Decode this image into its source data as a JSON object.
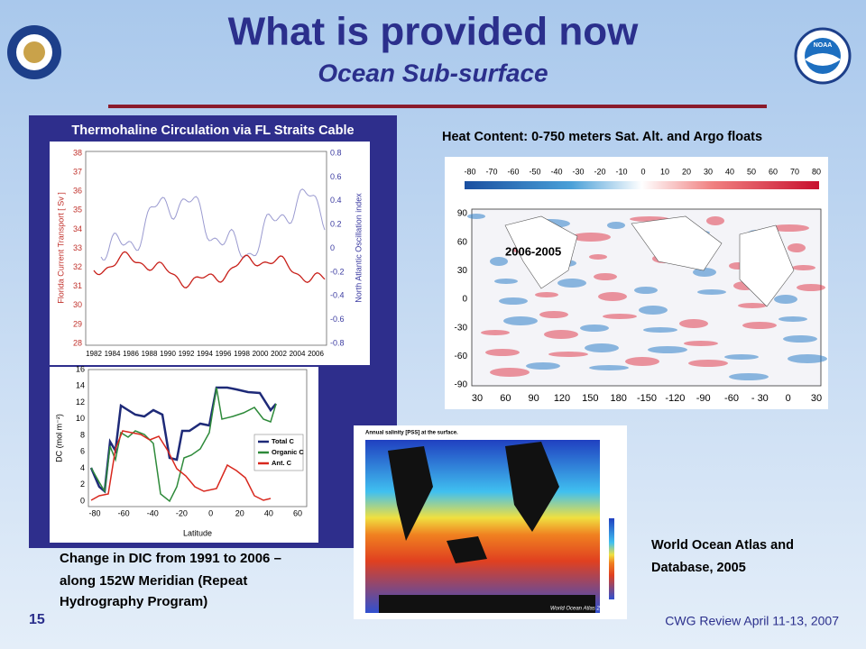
{
  "header": {
    "title": "What is provided now",
    "subtitle": "Ocean Sub-surface"
  },
  "transport_panel": {
    "title": "Thermohaline Circulation via FL Straits Cable",
    "transport_chart": {
      "y_label": "Florida Current Transport [ Sv ]",
      "y_ticks": [
        38,
        37,
        36,
        35,
        34,
        33,
        32,
        31,
        30,
        29,
        28
      ],
      "y2_label": "North Atlantic Oscillation index",
      "y2_ticks": [
        0.8,
        0.6,
        0.4,
        0.2,
        0,
        -0.2,
        -0.4,
        -0.6,
        -0.8
      ],
      "x_ticks": [
        1982,
        1984,
        1986,
        1988,
        1990,
        1992,
        1994,
        1996,
        1998,
        2000,
        2002,
        2004,
        2006
      ]
    },
    "dic_chart": {
      "y_label": "DC (mol m⁻²)",
      "y_ticks": [
        16,
        14,
        12,
        10,
        8,
        6,
        4,
        2,
        0
      ],
      "x_label": "Latitude",
      "x_ticks": [
        -80,
        -60,
        -40,
        -20,
        0,
        20,
        40,
        60
      ],
      "legend": [
        "Total C",
        "Organic C",
        "Ant. C"
      ]
    }
  },
  "dic_caption": [
    "Change in DIC from 1991 to 2006 –",
    "along 152W Meridian (Repeat",
    "Hydrography Program)"
  ],
  "heat_map": {
    "title": "Heat Content: 0-750 meters Sat. Alt. and Argo floats",
    "period": "2006-2005",
    "colorbar_ticks": [
      -80,
      -70,
      -60,
      -50,
      -40,
      -30,
      -20,
      -10,
      0,
      10,
      20,
      30,
      40,
      50,
      60,
      70,
      80
    ],
    "y_ticks": [
      90,
      60,
      30,
      0,
      -30,
      -60,
      -90
    ],
    "x_ticks": [
      30,
      60,
      90,
      120,
      150,
      180,
      -150,
      -120,
      -90,
      -60,
      "- 30",
      0,
      30
    ]
  },
  "salinity_map": {
    "title": "Annual salinity [PSS] at the surface.",
    "footer": "World Ocean Atlas 2005"
  },
  "salinity_caption": [
    "World Ocean Atlas and",
    "Database, 2005"
  ],
  "logos": {
    "right": "NOAA"
  },
  "footer": {
    "slide_number": "15",
    "event": "CWG Review April 11-13, 2007"
  }
}
